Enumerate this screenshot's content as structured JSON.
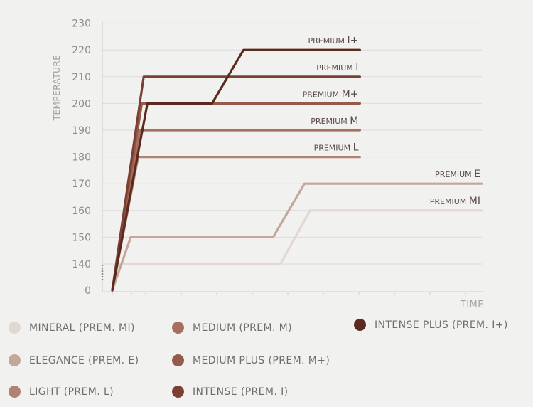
{
  "chart_data": {
    "type": "line",
    "ylabel": "TEMPERATURE",
    "xlabel": "TIME",
    "ylim": [
      0,
      230
    ],
    "yticks": [
      "0",
      "140",
      "150",
      "160",
      "170",
      "180",
      "190",
      "200",
      "210",
      "220",
      "230"
    ],
    "series": [
      {
        "name": "PREMIUM MI",
        "label_small": "PREMIUM",
        "label_big": "MI",
        "color": "#e3d7d2",
        "steps": [
          [
            0,
            0
          ],
          [
            2.0,
            140
          ],
          [
            45.5,
            140
          ],
          [
            53.5,
            160
          ],
          [
            100,
            160
          ]
        ]
      },
      {
        "name": "PREMIUM E",
        "label_small": "PREMIUM",
        "label_big": "E",
        "color": "#c4a69b",
        "steps": [
          [
            0,
            0
          ],
          [
            5.0,
            150
          ],
          [
            43.5,
            150
          ],
          [
            52.0,
            170
          ],
          [
            100,
            170
          ]
        ]
      },
      {
        "name": "PREMIUM L",
        "label_small": "PREMIUM",
        "label_big": "L",
        "color": "#b08272",
        "steps": [
          [
            0,
            0
          ],
          [
            7.0,
            180
          ],
          [
            37.5,
            180
          ],
          [
            44.5,
            180
          ],
          [
            67,
            180
          ]
        ]
      },
      {
        "name": "PREMIUM M",
        "label_small": "PREMIUM",
        "label_big": "M",
        "color": "#a5705f",
        "steps": [
          [
            0,
            0
          ],
          [
            7.5,
            190
          ],
          [
            33.5,
            190
          ],
          [
            42.5,
            190
          ],
          [
            67,
            190
          ]
        ]
      },
      {
        "name": "PREMIUM M+",
        "label_small": "PREMIUM",
        "label_big": "M+",
        "color": "#955a4a",
        "steps": [
          [
            0,
            0
          ],
          [
            8.0,
            200
          ],
          [
            30.0,
            200
          ],
          [
            38.0,
            200
          ],
          [
            67,
            200
          ]
        ]
      },
      {
        "name": "PREMIUM I",
        "label_small": "PREMIUM",
        "label_big": "I",
        "color": "#7c3f33",
        "steps": [
          [
            0,
            0
          ],
          [
            8.5,
            210
          ],
          [
            28.0,
            210
          ],
          [
            37.0,
            210
          ],
          [
            67,
            210
          ]
        ]
      },
      {
        "name": "PREMIUM I+",
        "label_small": "PREMIUM",
        "label_big": "I+",
        "color": "#5a2a20",
        "steps": [
          [
            0,
            0
          ],
          [
            9.5,
            200
          ],
          [
            27.0,
            200
          ],
          [
            35.5,
            220
          ],
          [
            67,
            220
          ]
        ]
      }
    ]
  },
  "legend": [
    {
      "text": "MINERAL (PREM. MI)",
      "color": "#e3d7d2"
    },
    {
      "text": "ELEGANCE (PREM. E)",
      "color": "#c4a69b"
    },
    {
      "text": "LIGHT (PREM. L)",
      "color": "#b08272"
    },
    {
      "text": "MEDIUM (PREM. M)",
      "color": "#a5705f"
    },
    {
      "text": "MEDIUM PLUS (PREM. M+)",
      "color": "#955a4a"
    },
    {
      "text": "INTENSE (PREM. I)",
      "color": "#7c3f33"
    },
    {
      "text": "INTENSE PLUS (PREM. I+)",
      "color": "#5a2a20"
    }
  ]
}
